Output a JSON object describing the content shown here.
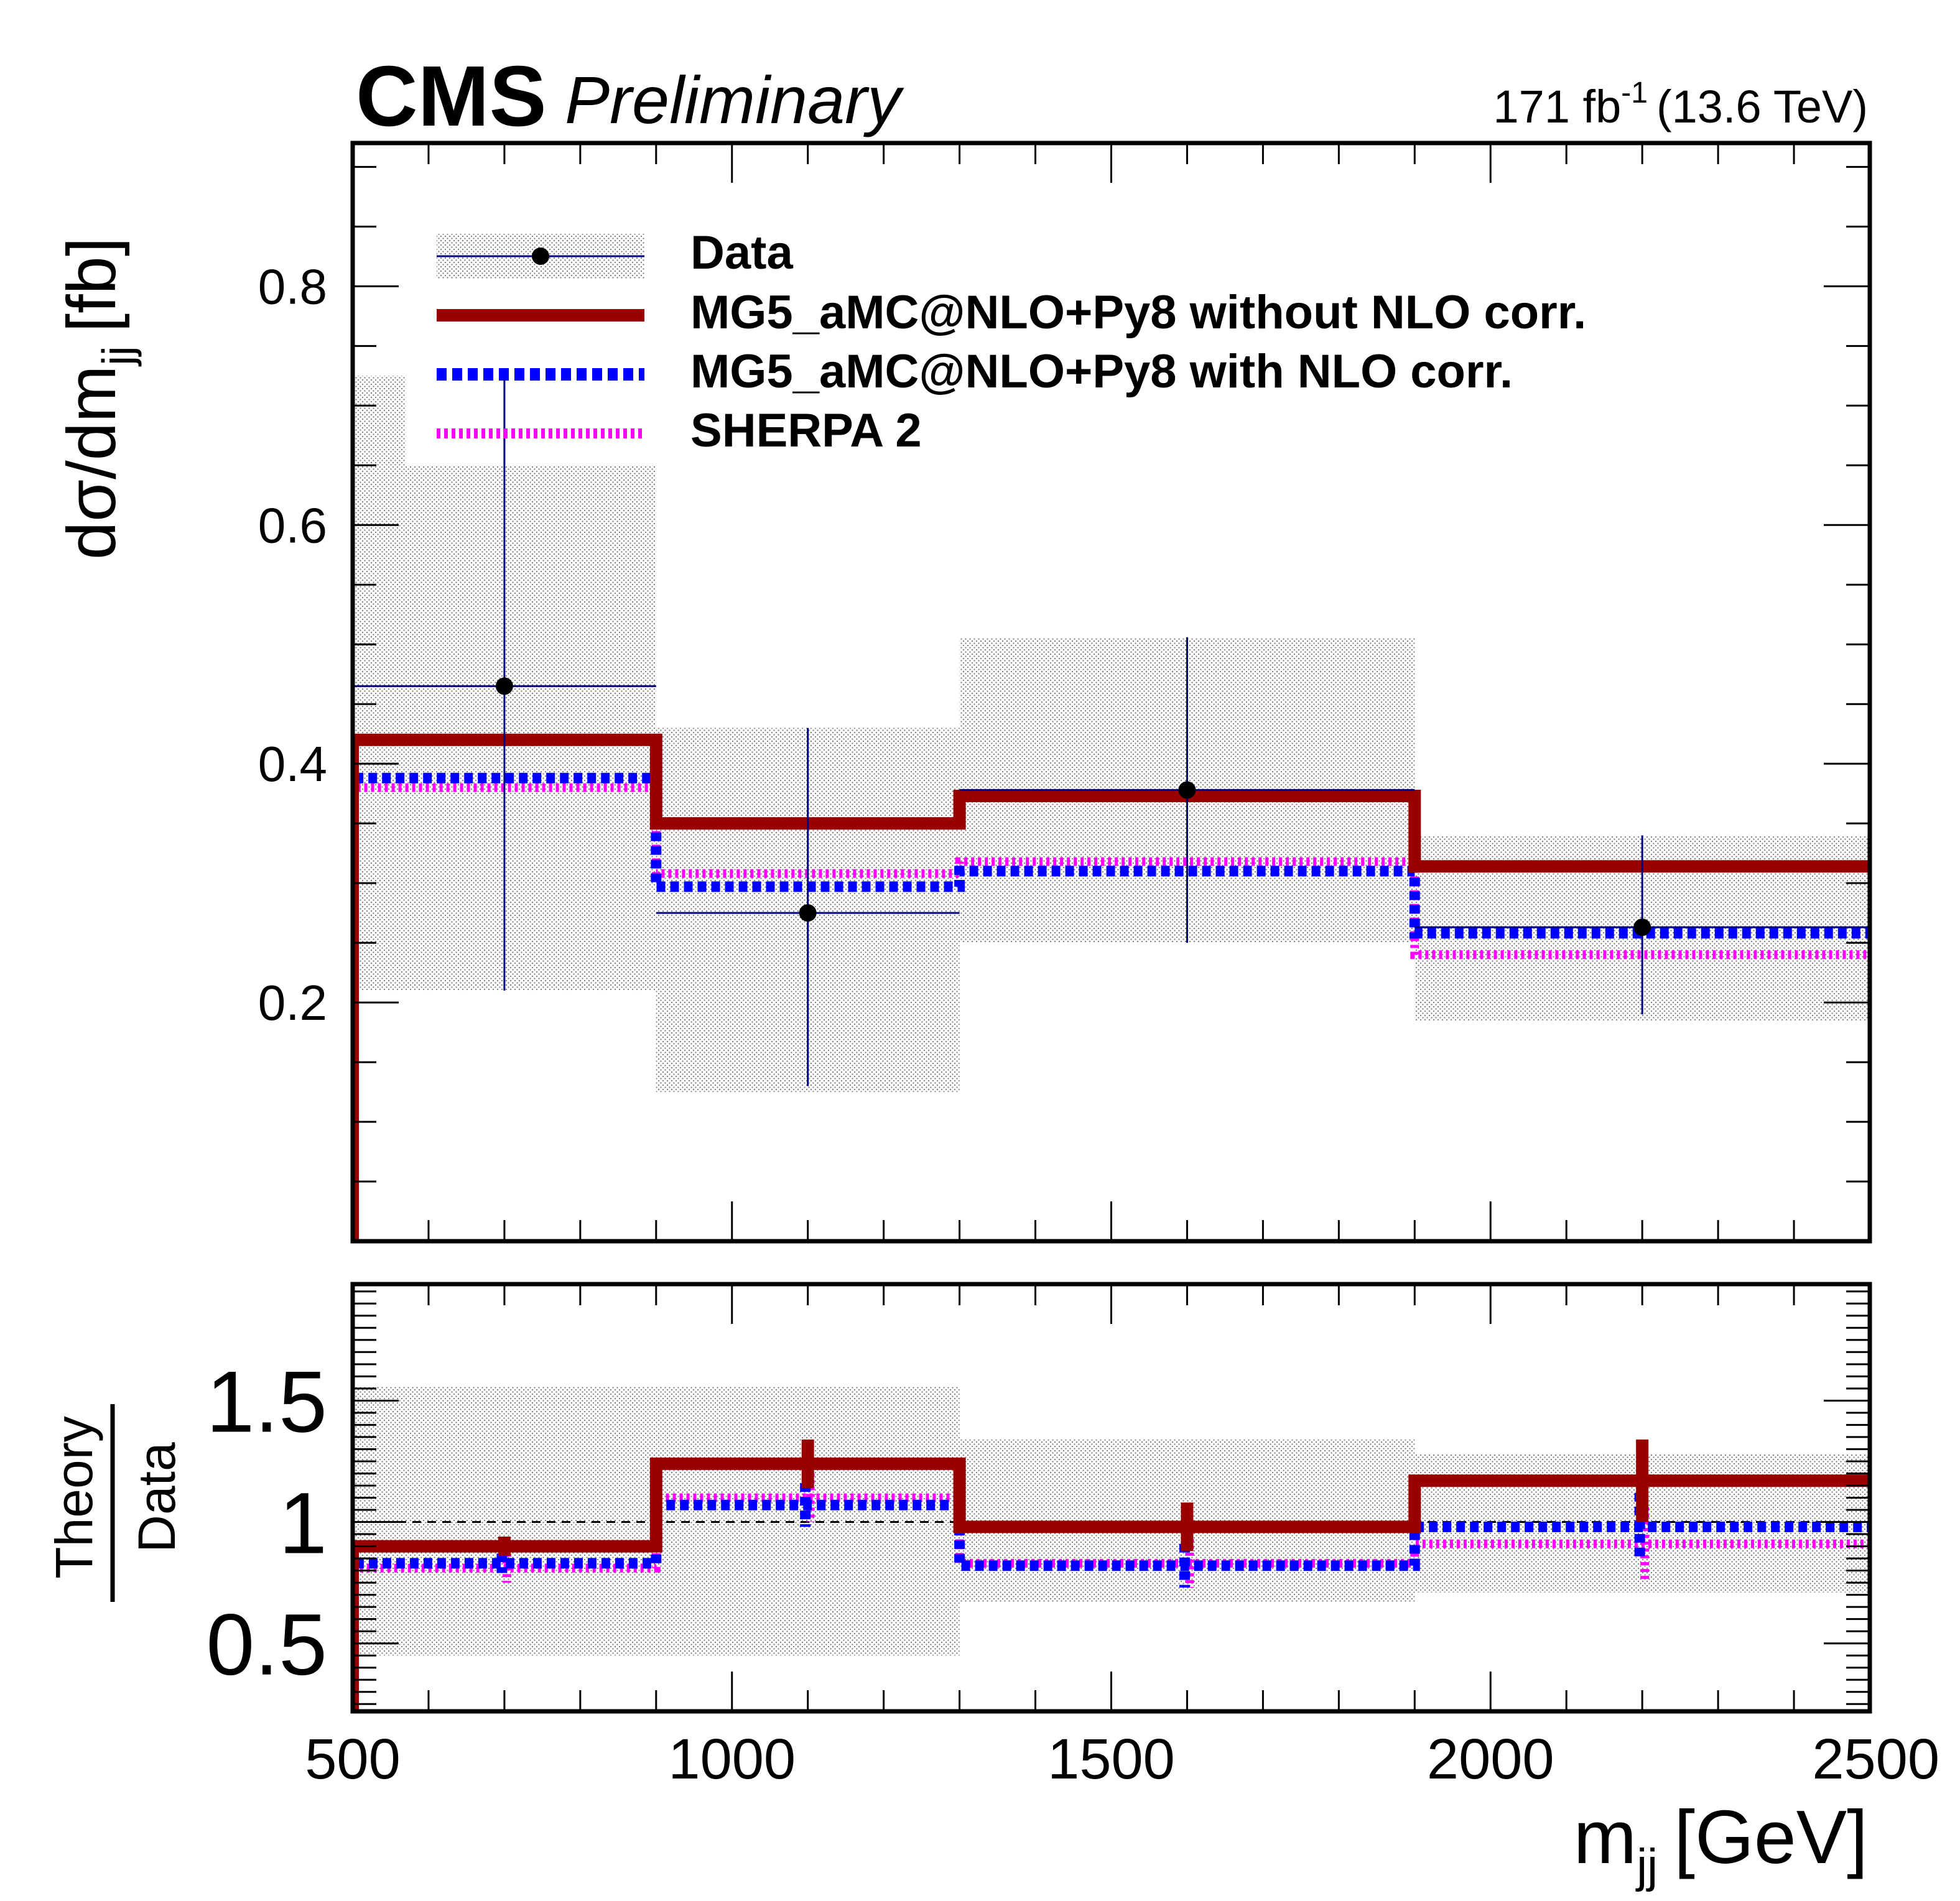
{
  "header": {
    "experiment": "CMS",
    "status": "Preliminary",
    "lumi_value": "171 fb",
    "lumi_exp": "-1",
    "energy": "(13.6 TeV)"
  },
  "colors": {
    "data": "#000000",
    "data_errorbar": "#000080",
    "band": "#808080",
    "mg5_no_nlo": "#990000",
    "mg5_nlo": "#0000ff",
    "sherpa": "#ff00ff",
    "reference_line": "#000000"
  },
  "chart_data": [
    {
      "type": "step",
      "panel": "main",
      "ylabel_main": "dσ/dm",
      "ylabel_sub": "jj",
      "ylabel_unit": "[fb]",
      "ylim": [
        0.0,
        0.92
      ],
      "xlim": [
        500,
        2500
      ],
      "yticks": [
        0.2,
        0.4,
        0.6,
        0.8
      ],
      "ytick_labels": [
        "0.2",
        "0.4",
        "0.6",
        "0.8"
      ],
      "bin_edges": [
        500,
        900,
        1300,
        1900,
        2500
      ],
      "data": {
        "name": "Data",
        "x": [
          700,
          1100,
          1600,
          2200
        ],
        "y": [
          0.465,
          0.275,
          0.378,
          0.263
        ],
        "err_low": [
          0.255,
          0.145,
          0.128,
          0.073
        ],
        "err_high": [
          0.26,
          0.155,
          0.128,
          0.077
        ]
      },
      "data_band": {
        "low": [
          0.21,
          0.125,
          0.25,
          0.185
        ],
        "high": [
          0.65,
          0.43,
          0.505,
          0.34
        ],
        "first_bin_upper_sliver": 0.725
      },
      "series": [
        {
          "name": "MG5_aMC@NLO+Py8 without NLO corr.",
          "values": [
            0.42,
            0.35,
            0.373,
            0.314
          ],
          "style": "solid"
        },
        {
          "name": "MG5_aMC@NLO+Py8 with NLO corr.",
          "values": [
            0.388,
            0.297,
            0.31,
            0.258
          ],
          "style": "dashed"
        },
        {
          "name": "SHERPA 2",
          "values": [
            0.38,
            0.308,
            0.318,
            0.24
          ],
          "style": "dotted"
        }
      ],
      "legend": {
        "position": "top-left",
        "entries": [
          "Data",
          "MG5_aMC@NLO+Py8 without NLO corr.",
          "MG5_aMC@NLO+Py8 with NLO corr.",
          "SHERPA 2"
        ]
      }
    },
    {
      "type": "step",
      "panel": "ratio",
      "ylabel_num": "Theory",
      "ylabel_den": "Data",
      "ylim": [
        0.22,
        1.98
      ],
      "xlim": [
        500,
        2500
      ],
      "yticks": [
        0.5,
        1.0,
        1.5
      ],
      "ytick_labels": [
        "0.5",
        "1",
        "1.5"
      ],
      "xticks": [
        500,
        1000,
        1500,
        2000,
        2500
      ],
      "xtick_labels": [
        "500",
        "1000",
        "1500",
        "2000",
        "2500"
      ],
      "xlabel_main": "m",
      "xlabel_sub": "jj",
      "xlabel_unit": "[GeV]",
      "reference_value": 1.0,
      "bin_edges": [
        500,
        900,
        1300,
        1900,
        2500
      ],
      "band": {
        "low": [
          0.45,
          0.45,
          0.67,
          0.71
        ],
        "high": [
          1.56,
          1.56,
          1.34,
          1.28
        ]
      },
      "series": [
        {
          "name": "MG5_aMC@NLO+Py8 without NLO corr.",
          "values": [
            0.9,
            1.24,
            0.98,
            1.17
          ],
          "err": [
            0.04,
            0.1,
            0.1,
            0.17
          ]
        },
        {
          "name": "MG5_aMC@NLO+Py8 with NLO corr.",
          "values": [
            0.83,
            1.07,
            0.82,
            0.98
          ],
          "err": [
            0.04,
            0.09,
            0.09,
            0.14
          ]
        },
        {
          "name": "SHERPA 2",
          "values": [
            0.81,
            1.1,
            0.83,
            0.91
          ],
          "err": [
            0.06,
            0.1,
            0.1,
            0.15
          ]
        }
      ]
    }
  ]
}
